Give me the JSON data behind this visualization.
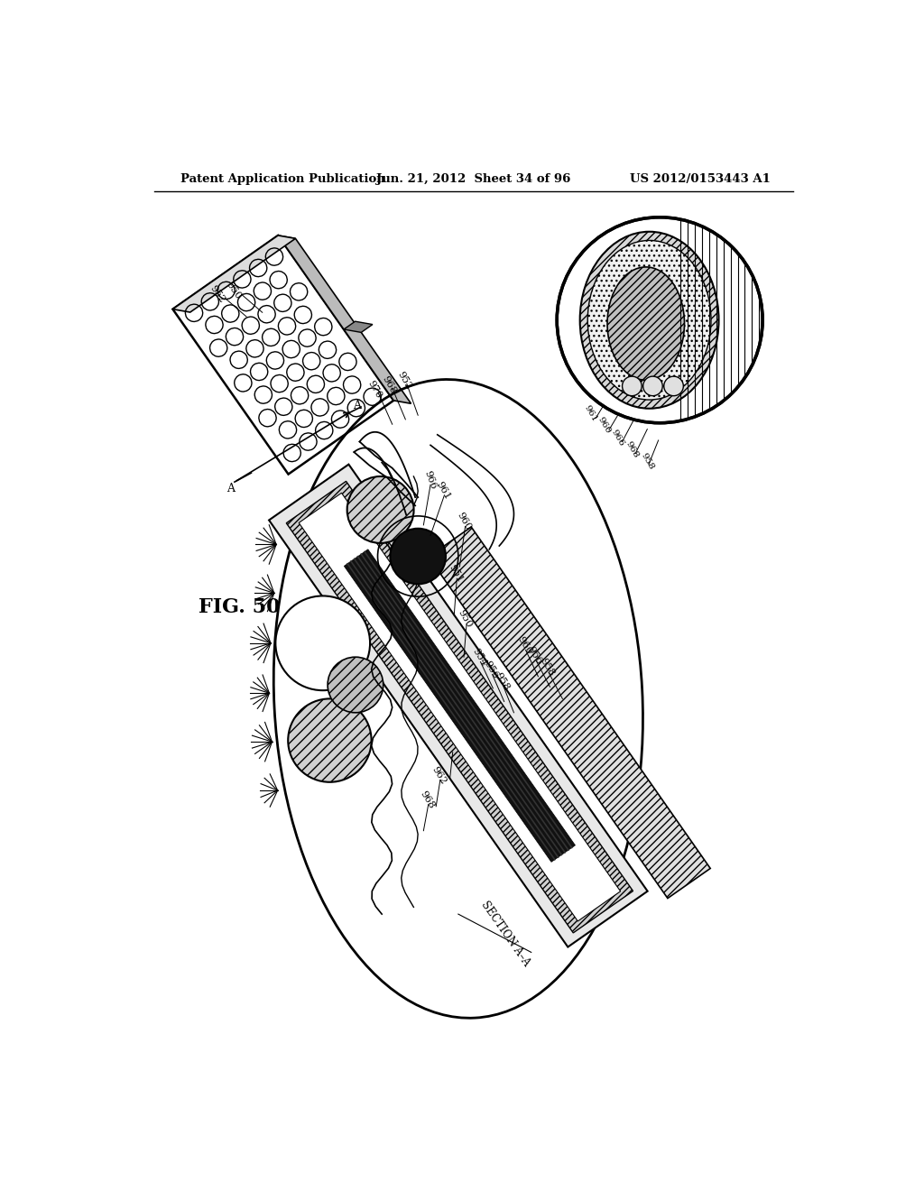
{
  "bg_color": "#ffffff",
  "header_left": "Patent Application Publication",
  "header_center": "Jun. 21, 2012  Sheet 34 of 96",
  "header_right": "US 2012/0153443 A1",
  "fig_label": "FIG. 50",
  "section_label": "SECTION A–A"
}
